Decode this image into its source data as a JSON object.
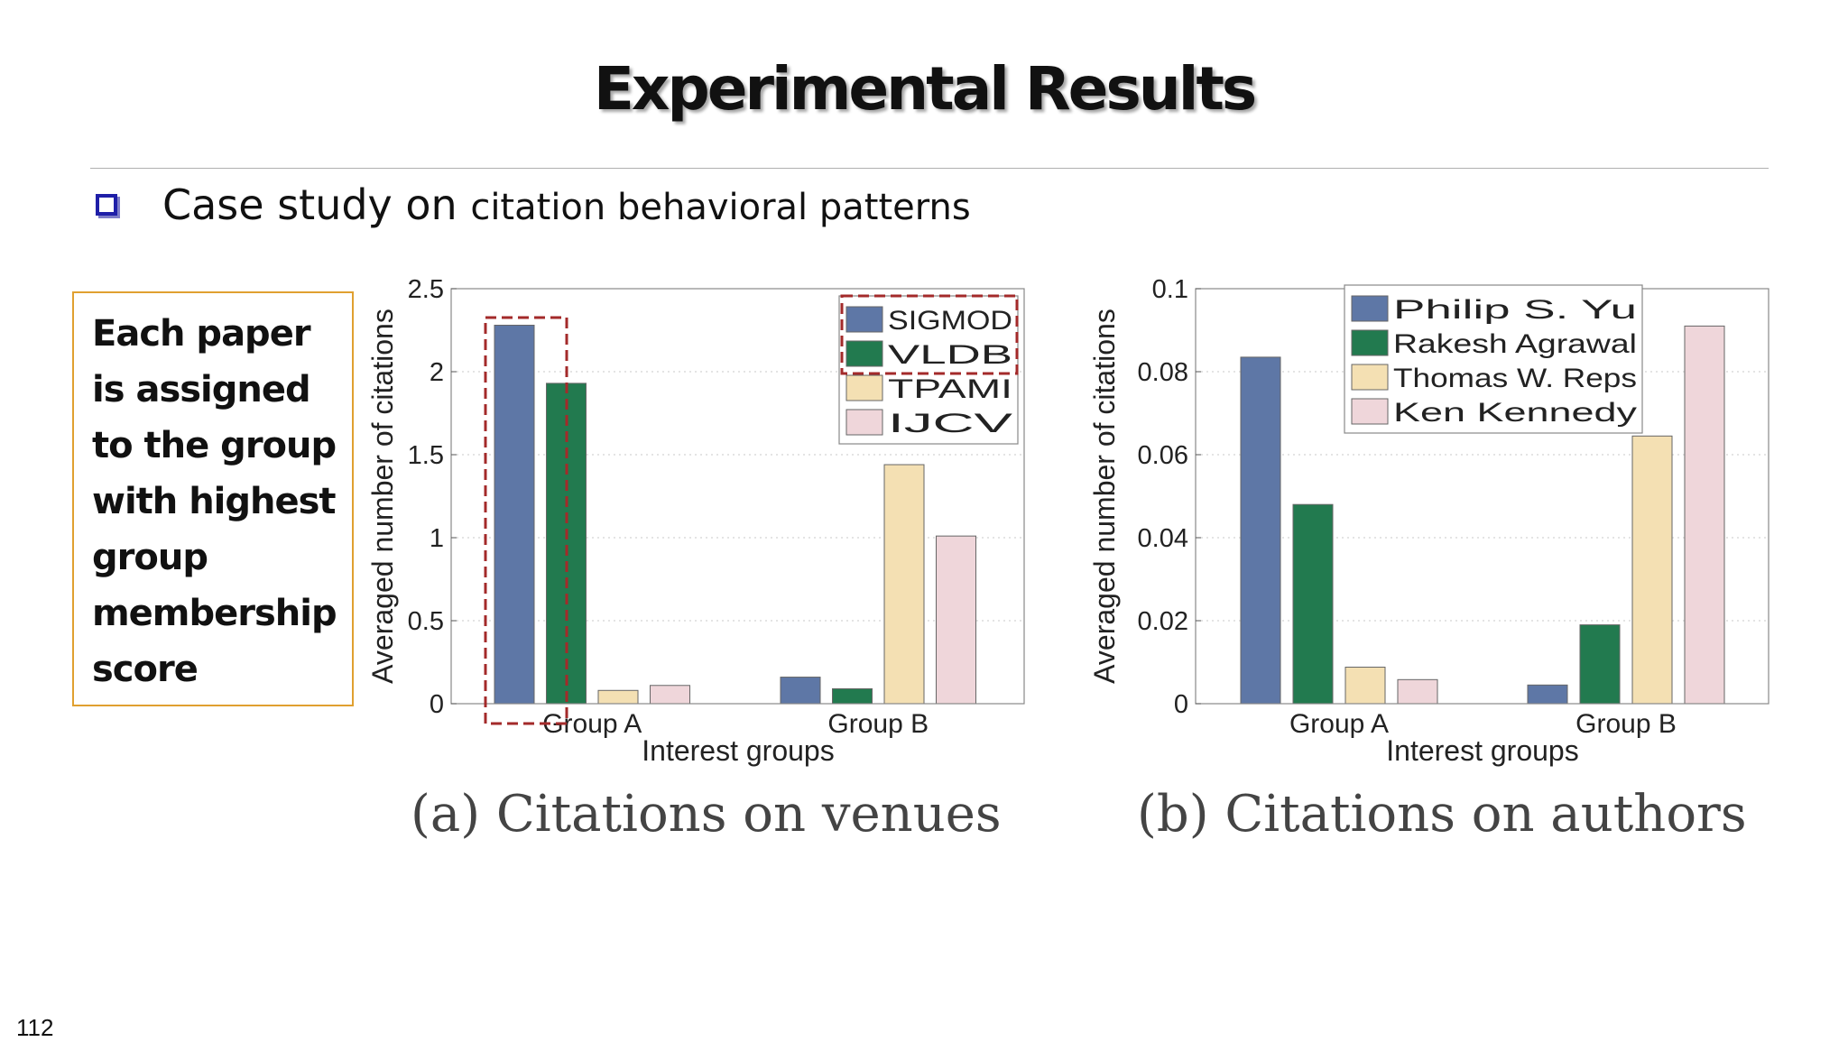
{
  "slide": {
    "title": "Experimental Results",
    "bullet_main": "Case study on ",
    "bullet_small": "citation behavioral patterns",
    "note_lines": [
      "Each paper",
      "is assigned",
      "to the group",
      "with highest",
      "group",
      "membership",
      "score"
    ],
    "page_number": "112"
  },
  "colors": {
    "series": [
      "#5e77a6",
      "#227a4f",
      "#f4e0b3",
      "#efd6da"
    ],
    "highlight": "#a32a2a",
    "note_border": "#e0a030",
    "bullet": "#1f1fa8"
  },
  "chart_data": [
    {
      "type": "bar",
      "caption": "(a) Citations on venues",
      "categories": [
        "Group A",
        "Group B"
      ],
      "xlabel": "Interest groups",
      "ylabel": "Averaged number of citations",
      "ylim": [
        0,
        2.5
      ],
      "yticks": [
        0,
        0.5,
        1,
        1.5,
        2,
        2.5
      ],
      "ytick_labels": [
        "0",
        "0.5",
        "1",
        "1.5",
        "2",
        "2.5"
      ],
      "grid": true,
      "legend": "top-right",
      "series": [
        {
          "name": "SIGMOD",
          "values": [
            2.28,
            0.16
          ]
        },
        {
          "name": "VLDB",
          "values": [
            1.93,
            0.09
          ]
        },
        {
          "name": "TPAMI",
          "values": [
            0.08,
            1.44
          ]
        },
        {
          "name": "IJCV",
          "values": [
            0.11,
            1.01
          ]
        }
      ],
      "highlight": "Group A SIGMOD and VLDB bars; SIGMOD and VLDB legend entries"
    },
    {
      "type": "bar",
      "caption": "(b) Citations on authors",
      "categories": [
        "Group A",
        "Group B"
      ],
      "xlabel": "Interest groups",
      "ylabel": "Averaged number of citations",
      "ylim": [
        0,
        0.1
      ],
      "yticks": [
        0,
        0.02,
        0.04,
        0.06,
        0.08,
        0.1
      ],
      "ytick_labels": [
        "0",
        "0.02",
        "0.04",
        "0.06",
        "0.08",
        "0.1"
      ],
      "grid": true,
      "legend": "top-center",
      "series": [
        {
          "name": "Philip S. Yu",
          "values": [
            0.0835,
            0.0045
          ]
        },
        {
          "name": "Rakesh Agrawal",
          "values": [
            0.048,
            0.019
          ]
        },
        {
          "name": "Thomas W. Reps",
          "values": [
            0.0088,
            0.0645
          ]
        },
        {
          "name": "Ken Kennedy",
          "values": [
            0.0058,
            0.091
          ]
        }
      ]
    }
  ]
}
